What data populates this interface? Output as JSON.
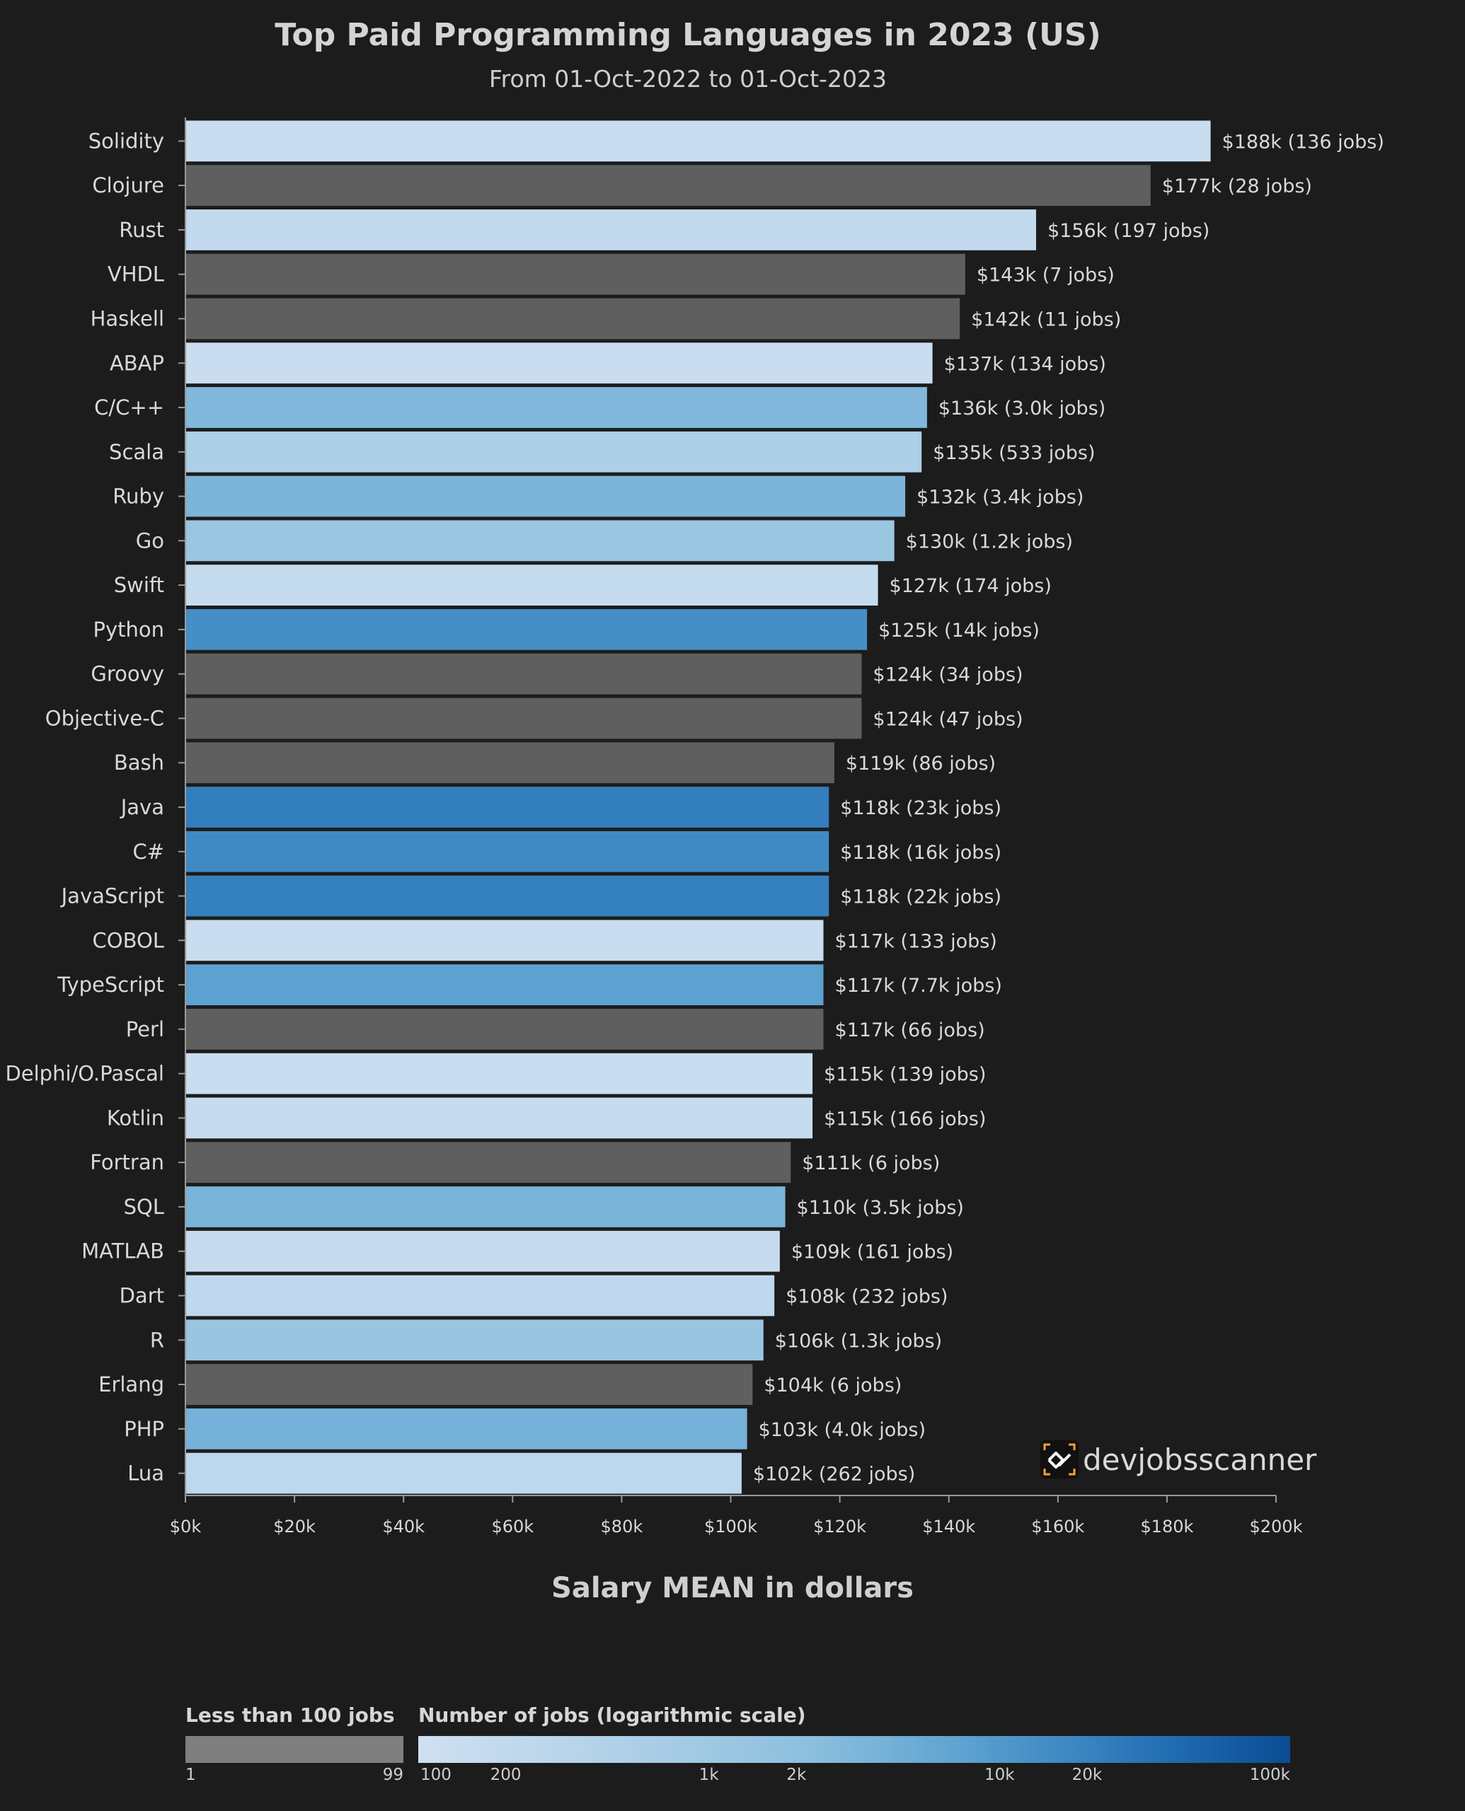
{
  "chart_data": {
    "type": "bar",
    "orientation": "horizontal",
    "title": "Top Paid Programming Languages in 2023 (US)",
    "subtitle": "From 01-Oct-2022 to 01-Oct-2023",
    "xlabel": "Salary MEAN in dollars",
    "xlim": [
      0,
      200000
    ],
    "x_ticks": [
      "$0k",
      "$20k",
      "$40k",
      "$60k",
      "$80k",
      "$100k",
      "$120k",
      "$140k",
      "$160k",
      "$180k",
      "$200k"
    ],
    "grid": false,
    "categories": [
      "Solidity",
      "Clojure",
      "Rust",
      "VHDL",
      "Haskell",
      "ABAP",
      "C/C++",
      "Scala",
      "Ruby",
      "Go",
      "Swift",
      "Python",
      "Groovy",
      "Objective-C",
      "Bash",
      "Java",
      "C#",
      "JavaScript",
      "COBOL",
      "TypeScript",
      "Perl",
      "Delphi/O.Pascal",
      "Kotlin",
      "Fortran",
      "SQL",
      "MATLAB",
      "Dart",
      "R",
      "Erlang",
      "PHP",
      "Lua"
    ],
    "values": [
      188000,
      177000,
      156000,
      143000,
      142000,
      137000,
      136000,
      135000,
      132000,
      130000,
      127000,
      125000,
      124000,
      124000,
      119000,
      118000,
      118000,
      118000,
      117000,
      117000,
      117000,
      115000,
      115000,
      111000,
      110000,
      109000,
      108000,
      106000,
      104000,
      103000,
      102000
    ],
    "jobs": [
      136,
      28,
      197,
      7,
      11,
      134,
      3000,
      533,
      3400,
      1200,
      174,
      14000,
      34,
      47,
      86,
      23000,
      16000,
      22000,
      133,
      7700,
      66,
      139,
      166,
      6,
      3500,
      161,
      232,
      1300,
      6,
      4000,
      262
    ],
    "data_labels": [
      "$188k (136 jobs)",
      "$177k (28 jobs)",
      "$156k (197 jobs)",
      "$143k (7 jobs)",
      "$142k (11 jobs)",
      "$137k (134 jobs)",
      "$136k (3.0k jobs)",
      "$135k (533 jobs)",
      "$132k (3.4k jobs)",
      "$130k (1.2k jobs)",
      "$127k (174 jobs)",
      "$125k (14k jobs)",
      "$124k (34 jobs)",
      "$124k (47 jobs)",
      "$119k (86 jobs)",
      "$118k (23k jobs)",
      "$118k (16k jobs)",
      "$118k (22k jobs)",
      "$117k (133 jobs)",
      "$117k (7.7k jobs)",
      "$117k (66 jobs)",
      "$115k (139 jobs)",
      "$115k (166 jobs)",
      "$111k (6 jobs)",
      "$110k (3.5k jobs)",
      "$109k (161 jobs)",
      "$108k (232 jobs)",
      "$106k (1.3k jobs)",
      "$104k (6 jobs)",
      "$103k (4.0k jobs)",
      "$102k (262 jobs)"
    ],
    "colors": {
      "low_count": "#5f5f5f",
      "scale_low": "#d0e0f2",
      "scale_high": "#0a4c93",
      "text": "#d9d9d9",
      "axis": "#9a9a9a"
    }
  },
  "legend": {
    "gray_title": "Less than 100 jobs",
    "gray_ticks": [
      "1",
      "99"
    ],
    "scale_title": "Number of jobs (logarithmic scale)",
    "scale_ticks": [
      "100",
      "200",
      "1k",
      "2k",
      "10k",
      "20k",
      "100k"
    ],
    "scale_tick_values": [
      100,
      200,
      1000,
      2000,
      10000,
      20000,
      100000
    ],
    "scale_range": [
      100,
      100000
    ]
  },
  "logo": {
    "text": "devjobsscanner",
    "icon": "devjobsscanner-logo-icon"
  }
}
